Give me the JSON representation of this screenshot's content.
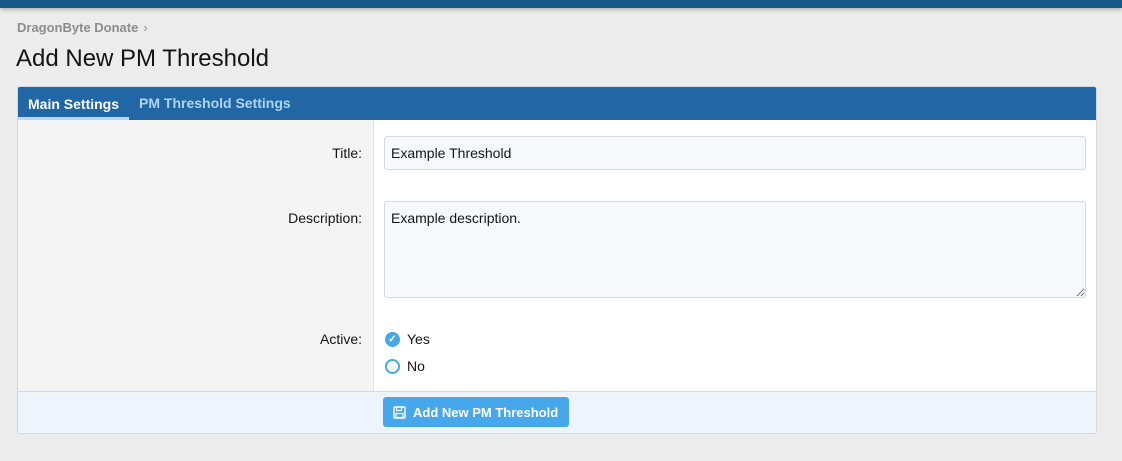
{
  "breadcrumb": {
    "items": [
      "DragonByte Donate"
    ],
    "separator": "›"
  },
  "page_title": "Add New PM Threshold",
  "tabs": [
    {
      "label": "Main Settings",
      "active": true
    },
    {
      "label": "PM Threshold Settings",
      "active": false
    }
  ],
  "form": {
    "title": {
      "label": "Title:",
      "value": "Example Threshold"
    },
    "description": {
      "label": "Description:",
      "value": "Example description."
    },
    "active": {
      "label": "Active:",
      "options": [
        {
          "label": "Yes",
          "checked": true
        },
        {
          "label": "No",
          "checked": false
        }
      ]
    }
  },
  "submit": {
    "label": "Add New PM Threshold",
    "icon": "save-icon"
  },
  "colors": {
    "header": "#185886",
    "tabs": "#2166a5",
    "accent": "#47a7eb"
  }
}
